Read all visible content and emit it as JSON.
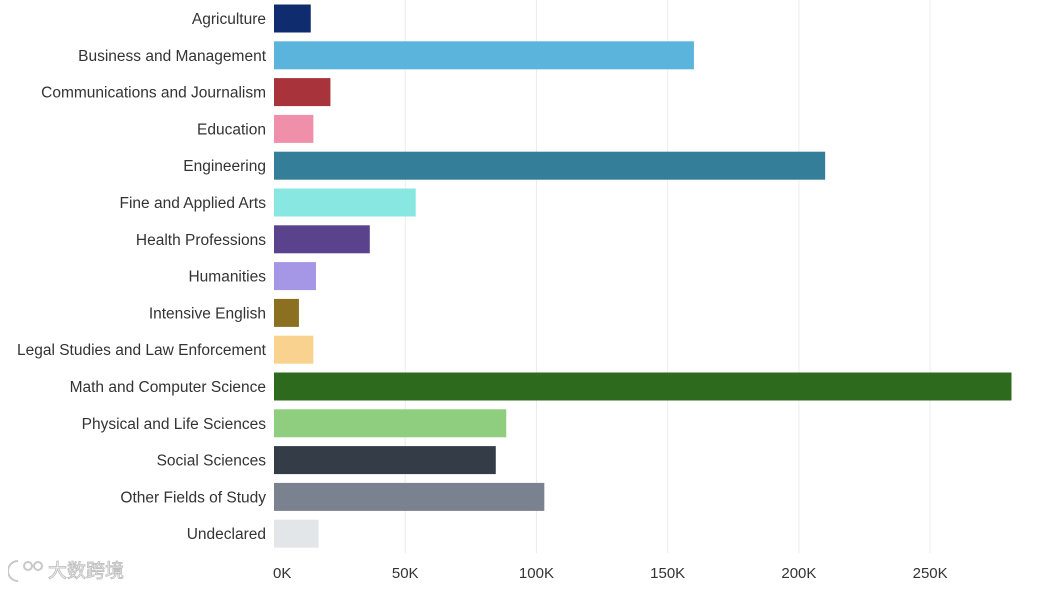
{
  "chart_data": {
    "type": "bar",
    "orientation": "horizontal",
    "categories": [
      "Agriculture",
      "Business and Management",
      "Communications and Journalism",
      "Education",
      "Engineering",
      "Fine and Applied Arts",
      "Health Professions",
      "Humanities",
      "Intensive English",
      "Legal Studies and Law Enforcement",
      "Math and Computer Science",
      "Physical and Life Sciences",
      "Social Sciences",
      "Other Fields of Study",
      "Undeclared"
    ],
    "values": [
      14000,
      160000,
      21500,
      15000,
      210000,
      54000,
      36500,
      16000,
      9500,
      15000,
      281000,
      88500,
      84500,
      103000,
      17000
    ],
    "colors": [
      "#0f2d6e",
      "#5ab4dc",
      "#a8333a",
      "#f08fa9",
      "#357e9a",
      "#88e8e1",
      "#5a438c",
      "#a596e6",
      "#8b7022",
      "#f8d28e",
      "#2d6a1d",
      "#8fcd7f",
      "#343d47",
      "#7a8290",
      "#e3e6e9"
    ],
    "xlim": [
      0,
      285000
    ],
    "x_ticks": [
      0,
      50000,
      100000,
      150000,
      200000,
      250000
    ],
    "x_tick_labels": [
      "0K",
      "50K",
      "100K",
      "150K",
      "200K",
      "250K"
    ],
    "grid": "vertical",
    "title": "",
    "xlabel": "",
    "ylabel": ""
  },
  "watermark": {
    "text": "大数跨境",
    "icon": "watermark-logo-icon"
  }
}
